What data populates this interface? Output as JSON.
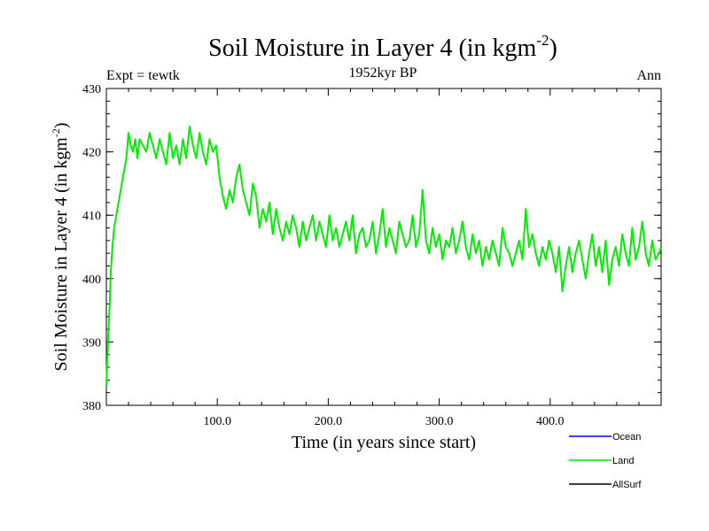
{
  "chart_data": {
    "type": "line",
    "title": "Soil Moisture in Layer 4 (in kgm",
    "title_sup": "-2",
    "title_suffix": ")",
    "subtitle": "1952kyr BP",
    "expt_label": "Expt = tewtk",
    "period_label": "Ann",
    "xlabel": "Time (in years since start)",
    "ylabel": "Soil Moisture in Layer 4 (in kgm",
    "ylabel_sup": "-2",
    "ylabel_suffix": ")",
    "xlim": [
      0,
      500
    ],
    "ylim": [
      380,
      430
    ],
    "xticks": [
      100,
      200,
      300,
      400
    ],
    "xtick_labels": [
      "100.0",
      "200.0",
      "300.0",
      "400.0"
    ],
    "yticks": [
      380,
      390,
      400,
      410,
      420,
      430
    ],
    "ytick_labels": [
      "380",
      "390",
      "400",
      "410",
      "420",
      "430"
    ],
    "legend": [
      {
        "name": "Ocean",
        "color": "#0000ff"
      },
      {
        "name": "Land",
        "color": "#00ee00"
      },
      {
        "name": "AllSurf",
        "color": "#000000"
      }
    ],
    "series": [
      {
        "name": "Land",
        "color": "#00ee00",
        "x": [
          0,
          1,
          2,
          3,
          4,
          5,
          6,
          7,
          8,
          10,
          12,
          14,
          16,
          18,
          20,
          22,
          24,
          26,
          28,
          30,
          33,
          36,
          39,
          42,
          45,
          48,
          51,
          54,
          57,
          60,
          63,
          66,
          69,
          72,
          75,
          78,
          81,
          84,
          87,
          90,
          93,
          96,
          99,
          102,
          105,
          108,
          111,
          114,
          117,
          120,
          123,
          126,
          129,
          132,
          135,
          138,
          141,
          144,
          147,
          150,
          153,
          156,
          159,
          162,
          165,
          168,
          171,
          174,
          177,
          180,
          183,
          186,
          189,
          192,
          195,
          198,
          201,
          204,
          207,
          210,
          213,
          216,
          219,
          222,
          225,
          228,
          231,
          234,
          237,
          240,
          243,
          246,
          249,
          252,
          255,
          258,
          261,
          264,
          267,
          270,
          273,
          276,
          279,
          282,
          285,
          288,
          291,
          294,
          297,
          300,
          303,
          306,
          309,
          312,
          315,
          318,
          321,
          324,
          327,
          330,
          333,
          336,
          339,
          342,
          345,
          348,
          351,
          354,
          357,
          360,
          363,
          366,
          369,
          372,
          375,
          378,
          381,
          384,
          387,
          390,
          393,
          396,
          399,
          402,
          405,
          408,
          411,
          414,
          417,
          420,
          423,
          426,
          429,
          432,
          435,
          438,
          441,
          444,
          447,
          450,
          453,
          456,
          459,
          462,
          465,
          468,
          471,
          474,
          477,
          480,
          483,
          486,
          489,
          492,
          495,
          498,
          500
        ],
        "y": [
          383,
          388,
          392,
          396,
          401,
          404,
          406,
          408,
          409,
          411,
          413,
          415,
          417,
          419,
          423,
          421,
          420,
          422,
          419,
          422,
          421,
          420,
          423,
          421,
          419,
          422,
          420,
          418,
          423,
          419,
          421,
          418,
          422,
          419,
          424,
          421,
          419,
          423,
          420,
          418,
          422,
          420,
          421,
          416,
          413,
          411,
          414,
          412,
          416,
          418,
          414,
          412,
          410,
          415,
          413,
          408,
          411,
          409,
          412,
          407,
          411,
          408,
          406,
          409,
          407,
          410,
          408,
          405,
          409,
          406,
          408,
          410,
          406,
          409,
          407,
          405,
          410,
          406,
          408,
          405,
          407,
          409,
          406,
          410,
          404,
          407,
          408,
          405,
          406,
          409,
          404,
          407,
          411,
          405,
          408,
          406,
          404,
          409,
          407,
          405,
          406,
          410,
          405,
          407,
          414,
          406,
          404,
          408,
          405,
          407,
          403,
          406,
          405,
          408,
          404,
          406,
          409,
          405,
          403,
          407,
          404,
          406,
          402,
          405,
          403,
          406,
          404,
          402,
          408,
          405,
          404,
          402,
          404,
          406,
          403,
          411,
          405,
          407,
          404,
          402,
          405,
          403,
          406,
          404,
          401,
          405,
          398,
          402,
          405,
          401,
          404,
          406,
          403,
          400,
          404,
          407,
          402,
          405,
          401,
          406,
          399,
          403,
          405,
          402,
          407,
          404,
          402,
          408,
          403,
          405,
          409,
          404,
          402,
          406,
          403,
          404,
          405
        ]
      },
      {
        "name": "Ocean",
        "color": "#0000ff",
        "x": [],
        "y": []
      },
      {
        "name": "AllSurf",
        "color": "#000000",
        "x": [],
        "y": []
      }
    ]
  }
}
